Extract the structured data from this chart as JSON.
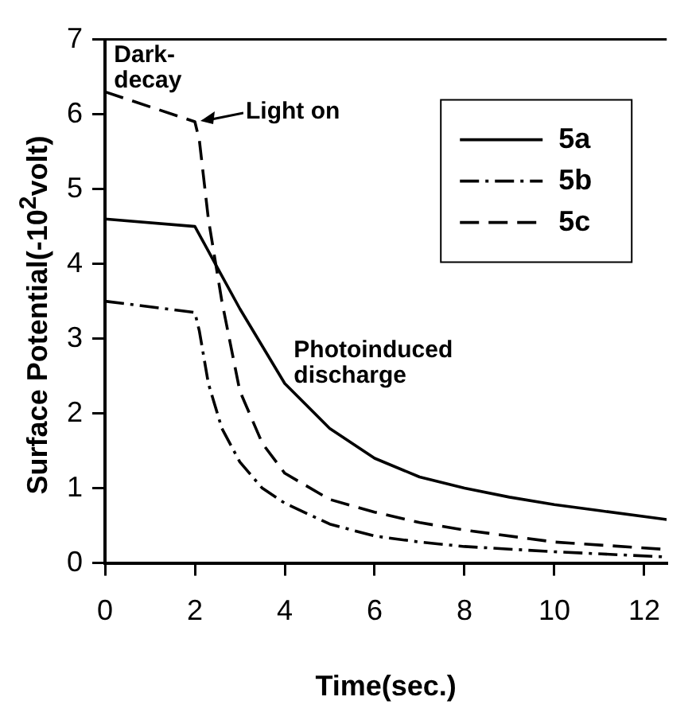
{
  "chart_data": {
    "type": "line",
    "xlabel": "Time(sec.)",
    "ylabel": "Surface Potential(-10$^{2}$volt)",
    "xlim": [
      0,
      12.5
    ],
    "xticks": [
      0,
      2,
      4,
      6,
      8,
      10,
      12
    ],
    "ylim": [
      0,
      7
    ],
    "yticks": [
      0,
      1,
      2,
      3,
      4,
      5,
      6,
      7
    ],
    "grid": false,
    "legend": "top right",
    "marker": "none",
    "annotations": [
      "Dark-\ndecay",
      {
        "text": "Light on",
        "x": 2,
        "y": 5.9
      },
      "Photoinduced\ndischarge"
    ],
    "series": [
      {
        "name": "5a",
        "color": "#000000",
        "line_style": "solid",
        "x": [
          0,
          2,
          2.5,
          3,
          4,
          5,
          6,
          7,
          8,
          9,
          10,
          11,
          12.5
        ],
        "values": [
          4.6,
          4.5,
          3.95,
          3.4,
          2.4,
          1.8,
          1.4,
          1.15,
          1.0,
          0.88,
          0.78,
          0.7,
          0.58
        ]
      },
      {
        "name": "5b",
        "color": "#000000",
        "line_style": "dashdot",
        "x": [
          0,
          2,
          2.1,
          2.3,
          2.6,
          3,
          3.5,
          4,
          5,
          6,
          7,
          8,
          10,
          12.5
        ],
        "values": [
          3.5,
          3.35,
          3.1,
          2.4,
          1.8,
          1.35,
          1.0,
          0.8,
          0.52,
          0.36,
          0.28,
          0.22,
          0.15,
          0.08
        ]
      },
      {
        "name": "5c",
        "color": "#000000",
        "line_style": "dashed",
        "x": [
          0,
          2,
          2.1,
          2.3,
          2.6,
          3,
          3.5,
          4,
          5,
          6,
          7,
          8,
          10,
          12.5
        ],
        "values": [
          6.3,
          5.9,
          5.65,
          4.6,
          3.5,
          2.3,
          1.6,
          1.2,
          0.85,
          0.68,
          0.54,
          0.44,
          0.28,
          0.18
        ]
      }
    ]
  }
}
